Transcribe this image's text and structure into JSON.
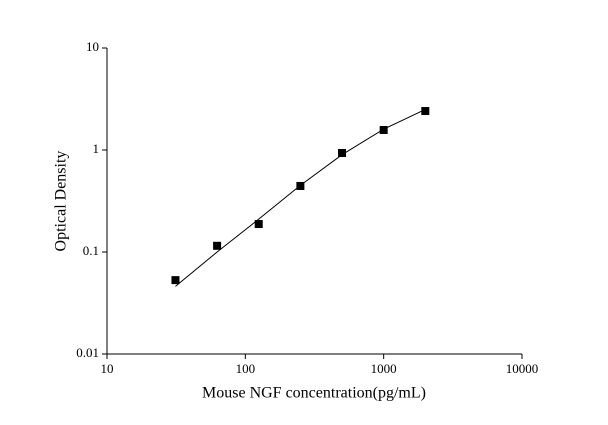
{
  "chart_data": {
    "type": "scatter",
    "xlabel": "Mouse NGF concentration(pg/mL)",
    "ylabel": "Optical Density",
    "x": [
      31.25,
      62.5,
      125,
      250,
      500,
      1000,
      2000
    ],
    "values": [
      0.053,
      0.115,
      0.188,
      0.444,
      0.935,
      1.57,
      2.41
    ],
    "color": "#000000",
    "fit": {
      "x": [
        31.25,
        62.5,
        125,
        250,
        500,
        1000,
        2000
      ],
      "values": [
        0.046,
        0.1,
        0.21,
        0.45,
        0.9,
        1.6,
        2.5
      ]
    },
    "xlog": true,
    "ylog": true,
    "xlim": [
      10,
      10000
    ],
    "ylim": [
      0.01,
      10
    ],
    "xticks": [
      10,
      100,
      1000,
      10000
    ],
    "yticks": [
      0.01,
      0.1,
      1,
      10
    ]
  }
}
